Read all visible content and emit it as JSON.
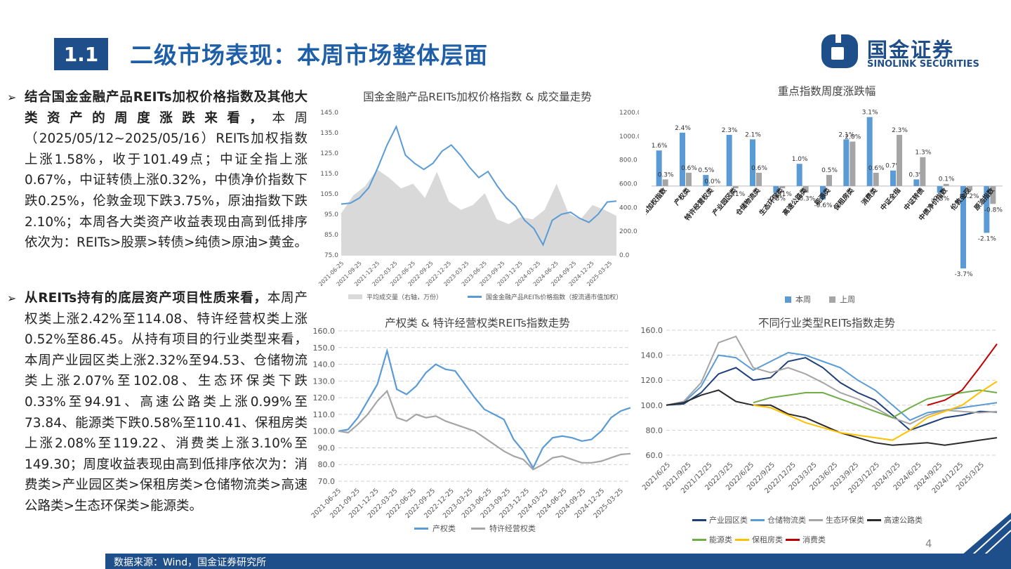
{
  "header": {
    "section_number": "1.1",
    "title": "二级市场表现：本周市场整体层面",
    "logo_cn": "国金证券",
    "logo_en": "SINOLINK SECURITIES"
  },
  "paragraphs": [
    {
      "bold": "结合国金金融产品REITs加权价格指数及其他大类资产的周度涨跌来看，",
      "text": "本周（2025/05/12~2025/05/16）REITs加权指数上涨1.58%，收于101.49点；中证全指上涨0.67%，中证转债上涨0.32%，中债净价指数下跌0.25%，伦敦金现下跌3.75%，原油指数下跌2.10%；本周各大类资产收益表现由高到低排序依次为：REITs>股票>转债>纯债>原油>黄金。"
    },
    {
      "bold": "从REITs持有的底层资产项目性质来看，",
      "text": "本周产权类上涨2.42%至114.08、特许经营权类上涨0.52%至86.45。从持有项目的行业类型来看，本周产业园区类上涨2.32%至94.53、仓储物流类上涨2.07%至102.08、生态环保类下跌0.33%至94.91、高速公路类上涨0.99%至73.84、能源类下跌0.58%至110.41、保租房类上涨2.08%至119.22、消费类上涨3.10%至149.30；周度收益表现由高到低排序依次为：消费类>产业园区类>保租房类>仓储物流类>高速公路类>生态环保类>能源类。"
    }
  ],
  "footer": {
    "source": "数据来源：Wind，国金证券研究所",
    "page": "4"
  },
  "chart_data": [
    {
      "type": "line",
      "title": "国金金融产品REITs加权价格指数 & 成交量走势",
      "x_ticks": [
        "2021-06-25",
        "2021-09-25",
        "2021-12-25",
        "2022-03-25",
        "2022-06-25",
        "2022-09-25",
        "2022-12-25",
        "2023-03-25",
        "2023-06-25",
        "2023-09-25",
        "2023-12-25",
        "2024-03-25",
        "2024-06-25",
        "2024-09-25",
        "2024-12-25",
        "2025-03-25"
      ],
      "y_left_ticks": [
        "75.0",
        "85.0",
        "95.0",
        "105.0",
        "115.0",
        "125.0",
        "135.0",
        "145.0"
      ],
      "y_right_ticks": [
        "0.0",
        "200.0",
        "400.0",
        "600.0",
        "800.0",
        "1000.0",
        "1200.0"
      ],
      "ylim_left": [
        75,
        145
      ],
      "ylim_right": [
        0,
        1200
      ],
      "series": [
        {
          "name": "平均成交量（右轴，万份）",
          "kind": "area",
          "axis": "right",
          "color": "#d9d9d9",
          "values": [
            350,
            500,
            580,
            720,
            650,
            560,
            600,
            480,
            700,
            450,
            380,
            420,
            520,
            300,
            260,
            320,
            300,
            380,
            600,
            350,
            300,
            420,
            380,
            330
          ]
        },
        {
          "name": "国金金融产品REITs价格指数（按流通市值加权）",
          "kind": "line",
          "axis": "left",
          "color": "#5b9bd5",
          "values": [
            100,
            100.5,
            103,
            108,
            118,
            129,
            138,
            124,
            120,
            117,
            120,
            126,
            129,
            124,
            118,
            113,
            116,
            109,
            103,
            99,
            92,
            88,
            80,
            92,
            95,
            96,
            93,
            91,
            95,
            101,
            101.5
          ]
        }
      ]
    },
    {
      "type": "bar",
      "title": "重点指数周度涨跌幅",
      "categories": [
        "REITs加权指数",
        "产权类",
        "特许经营权类",
        "产业园区类",
        "仓储物流类",
        "生态环保类",
        "高速公路类",
        "能源类",
        "保租房类",
        "消费类",
        "中证全指",
        "中证转债",
        "中债净价指数",
        "伦敦金现",
        "原油指数"
      ],
      "series": [
        {
          "name": "本周",
          "color": "#5b9bd5",
          "values": [
            1.6,
            2.4,
            0.5,
            2.3,
            2.1,
            -0.3,
            1.0,
            -0.6,
            2.1,
            3.1,
            0.7,
            0.3,
            -0.3,
            -3.7,
            -2.1
          ]
        },
        {
          "name": "上周",
          "color": "#a5a5a5",
          "values": [
            0.3,
            0.6,
            0.0,
            -0.1,
            0.6,
            -0.1,
            -0.3,
            0.5,
            2.0,
            0.6,
            2.3,
            1.3,
            0.1,
            -0.2,
            -0.8
          ]
        }
      ],
      "labels_this_week": [
        "1.6%",
        "2.4%",
        "0.5%",
        "2.3%",
        "2.1%",
        "-0.3%",
        "1.0%",
        "-0.6%",
        "2.1%",
        "3.1%",
        "0.7%",
        "0.3%",
        "-0.3%",
        "-3.7%",
        "-2.1%"
      ],
      "labels_last_week": [
        "0.3%",
        "0.6%",
        "0.0%",
        "-0.1%",
        "0.6%",
        "-0.1%",
        "-0.3%",
        "0.5%",
        "2.0%",
        "0.6%",
        "2.3%",
        "1.3%",
        "0.1%",
        "-0.2%",
        "-0.8%"
      ],
      "legend": "bottom"
    },
    {
      "type": "line",
      "title": "产权类 & 特许经营权类REITs指数走势",
      "x_ticks": [
        "2021-06-25",
        "2021-09-25",
        "2021-12-25",
        "2022-03-25",
        "2022-06-25",
        "2022-09-25",
        "2022-12-25",
        "2023-03-25",
        "2023-06-25",
        "2023-09-25",
        "2023-12-25",
        "2024-03-25",
        "2024-06-25",
        "2024-09-25",
        "2024-12-25",
        "2025-03-25"
      ],
      "y_ticks": [
        "70.0",
        "80.0",
        "90.0",
        "100.0",
        "110.0",
        "120.0",
        "130.0",
        "140.0",
        "150.0",
        "160.0"
      ],
      "ylim": [
        70,
        160
      ],
      "series": [
        {
          "name": "产权类",
          "color": "#5b9bd5",
          "values": [
            100,
            101,
            108,
            118,
            128,
            148,
            125,
            122,
            127,
            135,
            140,
            137,
            136,
            128,
            120,
            113,
            110,
            107,
            95,
            88,
            78,
            90,
            96,
            97,
            96,
            94,
            95,
            100,
            108,
            112,
            114
          ]
        },
        {
          "name": "特许经营权类",
          "color": "#a5a5a5",
          "values": [
            100,
            99,
            104,
            110,
            118,
            124,
            108,
            106,
            110,
            108,
            109,
            106,
            104,
            102,
            100,
            96,
            92,
            88,
            85,
            83,
            77,
            80,
            84,
            85,
            83,
            81,
            81,
            82,
            84,
            86,
            86.5
          ]
        }
      ],
      "legend": "bottom"
    },
    {
      "type": "line",
      "title": "不同行业类型REITs指数走势",
      "x_ticks": [
        "2021/6/25",
        "2021/9/25",
        "2021/12/25",
        "2022/3/25",
        "2022/6/25",
        "2022/9/25",
        "2022/12/25",
        "2023/3/25",
        "2023/6/25",
        "2023/9/25",
        "2023/12/25",
        "2024/3/25",
        "2024/6/25",
        "2024/9/25",
        "2024/12/25",
        "2025/3/25"
      ],
      "y_ticks": [
        "60.0",
        "80.0",
        "100.0",
        "120.0",
        "140.0",
        "160.0"
      ],
      "ylim": [
        60,
        160
      ],
      "series": [
        {
          "name": "产业园区类",
          "color": "#1f3f7a",
          "values": [
            100,
            101,
            110,
            125,
            130,
            120,
            122,
            135,
            138,
            130,
            118,
            110,
            104,
            92,
            80,
            85,
            90,
            92,
            95,
            94.5
          ]
        },
        {
          "name": "仓储物流类",
          "color": "#5b9bd5",
          "values": [
            100,
            102,
            115,
            140,
            138,
            128,
            135,
            142,
            140,
            135,
            130,
            120,
            112,
            100,
            88,
            94,
            96,
            98,
            100,
            102
          ]
        },
        {
          "name": "生态环保类",
          "color": "#a5a5a5",
          "values": [
            100,
            103,
            118,
            150,
            155,
            130,
            126,
            130,
            125,
            118,
            110,
            105,
            98,
            90,
            85,
            92,
            96,
            95,
            94,
            95
          ]
        },
        {
          "name": "高速公路类",
          "color": "#2b2b2b",
          "values": [
            100,
            102,
            108,
            112,
            103,
            100,
            100,
            93,
            90,
            84,
            78,
            74,
            70,
            68,
            69,
            70,
            68,
            70,
            72,
            74
          ]
        },
        {
          "name": "能源类",
          "color": "#70ad47",
          "values": [
            null,
            null,
            null,
            null,
            null,
            102,
            106,
            108,
            110,
            110,
            105,
            100,
            95,
            90,
            98,
            105,
            108,
            110,
            112,
            110
          ]
        },
        {
          "name": "保租房类",
          "color": "#ffc000",
          "values": [
            null,
            null,
            null,
            null,
            null,
            100,
            98,
            92,
            86,
            82,
            78,
            76,
            74,
            72,
            80,
            90,
            95,
            100,
            110,
            119
          ]
        },
        {
          "name": "消费类",
          "color": "#c00000",
          "values": [
            null,
            null,
            null,
            null,
            null,
            null,
            null,
            null,
            null,
            null,
            null,
            null,
            null,
            null,
            null,
            100,
            104,
            112,
            130,
            149
          ]
        }
      ],
      "legend": "bottom"
    }
  ]
}
